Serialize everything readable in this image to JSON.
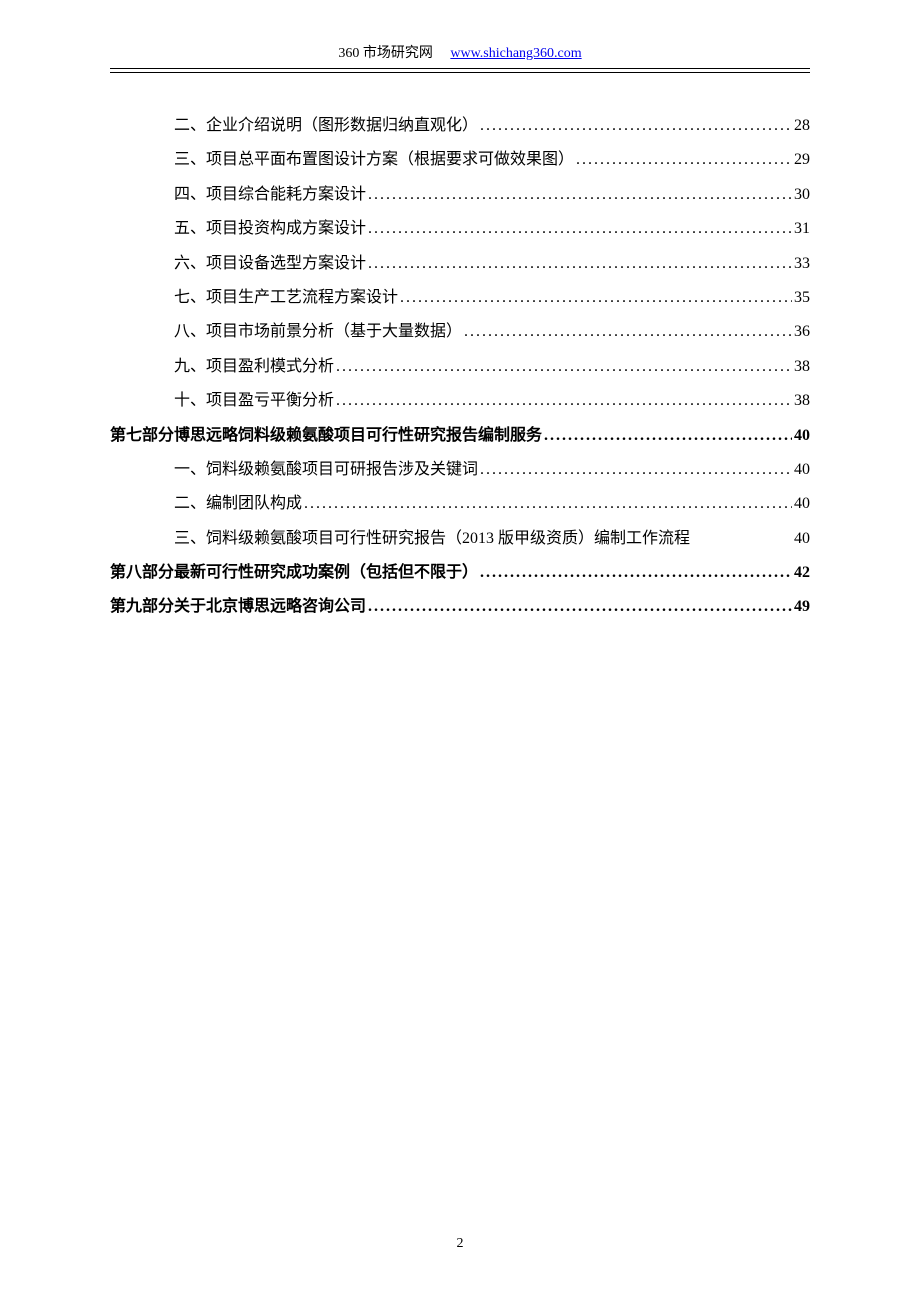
{
  "header": {
    "site_name": "360 市场研究网",
    "site_url": "www.shichang360.com",
    "link_color": "#0000ee",
    "text_color": "#000000"
  },
  "toc": {
    "font_size_pt": 12,
    "text_color": "#000000",
    "entries": [
      {
        "level": 2,
        "label": "二、企业介绍说明（图形数据归纳直观化）",
        "page": "28",
        "dots": true
      },
      {
        "level": 2,
        "label": "三、项目总平面布置图设计方案（根据要求可做效果图）",
        "page": "29",
        "dots": true
      },
      {
        "level": 2,
        "label": "四、项目综合能耗方案设计",
        "page": "30",
        "dots": true
      },
      {
        "level": 2,
        "label": "五、项目投资构成方案设计",
        "page": "31",
        "dots": true
      },
      {
        "level": 2,
        "label": "六、项目设备选型方案设计",
        "page": "33",
        "dots": true
      },
      {
        "level": 2,
        "label": "七、项目生产工艺流程方案设计",
        "page": "35",
        "dots": true
      },
      {
        "level": 2,
        "label": "八、项目市场前景分析（基于大量数据）",
        "page": "36",
        "dots": true
      },
      {
        "level": 2,
        "label": "九、项目盈利模式分析",
        "page": "38",
        "dots": true
      },
      {
        "level": 2,
        "label": "十、项目盈亏平衡分析",
        "page": "38",
        "dots": true
      },
      {
        "level": 1,
        "label": "第七部分博思远略饲料级赖氨酸项目可行性研究报告编制服务",
        "page": "40",
        "dots": true,
        "bold": true
      },
      {
        "level": 2,
        "label": "一、饲料级赖氨酸项目可研报告涉及关键词",
        "page": "40",
        "dots": true
      },
      {
        "level": 2,
        "label": "二、编制团队构成",
        "page": "40",
        "dots": true
      },
      {
        "level": 2,
        "label": "三、饲料级赖氨酸项目可行性研究报告（2013 版甲级资质）编制工作流程",
        "page": "40",
        "dots": false
      },
      {
        "level": 1,
        "label": "第八部分最新可行性研究成功案例（包括但不限于）",
        "page": "42",
        "dots": true,
        "bold": true
      },
      {
        "level": 1,
        "label": "第九部分关于北京博思远略咨询公司",
        "page": "49",
        "dots": true,
        "bold": true
      }
    ]
  },
  "footer": {
    "page_number": "2"
  },
  "colors": {
    "background": "#ffffff",
    "text": "#000000",
    "link": "#0000ee",
    "border": "#000000"
  }
}
